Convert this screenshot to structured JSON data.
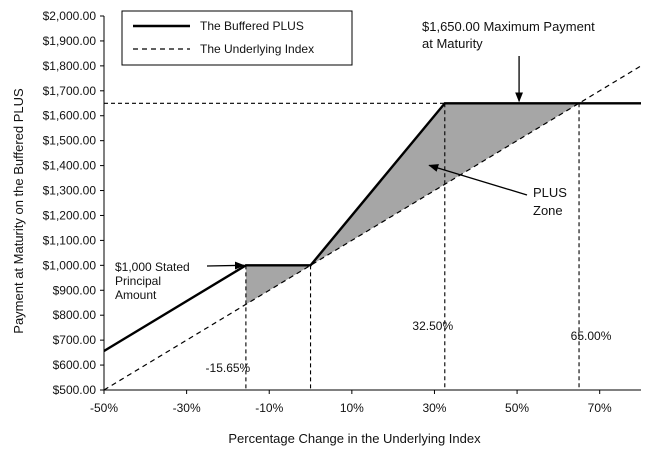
{
  "chart_data": {
    "type": "line",
    "xlabel": "Percentage Change in the Underlying Index",
    "ylabel": "Payment at Maturity on the Buffered PLUS",
    "xlim": [
      -50,
      80
    ],
    "ylim": [
      500,
      2000
    ],
    "x_ticks": [
      -50,
      -30,
      -10,
      10,
      30,
      50,
      70
    ],
    "x_tick_labels": [
      "-50%",
      "-30%",
      "-10%",
      "10%",
      "30%",
      "50%",
      "70%"
    ],
    "y_ticks": [
      500,
      600,
      700,
      800,
      900,
      1000,
      1100,
      1200,
      1300,
      1400,
      1500,
      1600,
      1700,
      1800,
      1900,
      2000
    ],
    "y_tick_labels": [
      "$500.00",
      "$600.00",
      "$700.00",
      "$800.00",
      "$900.00",
      "$1,000.00",
      "$1,100.00",
      "$1,200.00",
      "$1,300.00",
      "$1,400.00",
      "$1,500.00",
      "$1,600.00",
      "$1,700.00",
      "$1,800.00",
      "$1,900.00",
      "$2,000.00"
    ],
    "legend_position": "top-left",
    "series": [
      {
        "name": "The Buffered PLUS",
        "style": "solid",
        "x": [
          -50,
          -15.65,
          0,
          32.5,
          80
        ],
        "y": [
          656.5,
          1000,
          1000,
          1650,
          1650
        ]
      },
      {
        "name": "The Underlying Index",
        "style": "dashed",
        "x": [
          -50,
          80
        ],
        "y": [
          500,
          1800
        ]
      }
    ],
    "reference_lines": {
      "horizontal_y": 1650,
      "vertical_x": [
        -15.65,
        0,
        32.5,
        65
      ]
    },
    "shaded_regions": [
      {
        "x": [
          -15.65,
          0
        ],
        "between": "series"
      },
      {
        "x": [
          0,
          65
        ],
        "between": "series"
      }
    ],
    "annotations": {
      "max_payment": {
        "line1": "$1,650.00  Maximum  Payment",
        "line2": "at Maturity",
        "arrow_to": [
          50,
          1650
        ]
      },
      "plus_zone": {
        "line1": "PLUS",
        "line2": "Zone",
        "arrow_to": [
          28,
          1385
        ]
      },
      "stated_principal": {
        "line1": "$1,000 Stated",
        "line2": "Principal",
        "line3": "Amount",
        "arrow_to": [
          -15.65,
          1000
        ]
      },
      "point_labels": [
        {
          "text": "-15.65%",
          "x": -15.65
        },
        {
          "text": "32.50%",
          "x": 32.5
        },
        {
          "text": "65.00%",
          "x": 65
        }
      ]
    },
    "colors": {
      "line": "#000000",
      "shade": "#a6a6a6",
      "background": "#ffffff"
    }
  }
}
